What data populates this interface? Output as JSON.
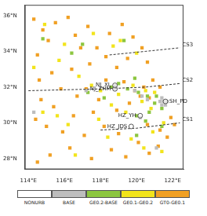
{
  "chart_data": {
    "type": "scatter",
    "xlim": [
      113.8,
      122.6
    ],
    "ylim": [
      27.4,
      36.6
    ],
    "xticks": [
      {
        "value": 114,
        "label": "114°E"
      },
      {
        "value": 116,
        "label": "116°E"
      },
      {
        "value": 118,
        "label": "118°E"
      },
      {
        "value": 120,
        "label": "120°E"
      },
      {
        "value": 122,
        "label": "122°E"
      }
    ],
    "yticks": [
      {
        "value": 28,
        "label": "28°N"
      },
      {
        "value": 30,
        "label": "30°N"
      },
      {
        "value": 32,
        "label": "32°N"
      },
      {
        "value": 34,
        "label": "34°N"
      },
      {
        "value": 36,
        "label": "36°N"
      }
    ],
    "grid": false,
    "legend": "bottom",
    "series": [
      {
        "name": "NONURB",
        "color": "#ffffff",
        "marker": "square",
        "x": [],
        "y": []
      },
      {
        "name": "BASE",
        "color": "#bdbdbd",
        "marker": "square",
        "x": [
          121.3,
          121.5,
          121.7,
          121.4,
          121.6,
          121.4,
          118.8,
          118.8,
          120.2,
          120.3,
          120.6,
          117.2,
          114.3,
          119.9,
          121.1
        ],
        "y": [
          31.2,
          31.2,
          31.2,
          31.4,
          31.0,
          31.0,
          32.1,
          31.9,
          30.3,
          31.5,
          31.3,
          31.8,
          30.6,
          31.8,
          28.6
        ]
      },
      {
        "name": "GE0.2-BASE",
        "color": "#8cc63f",
        "marker": "square",
        "x": [
          118.6,
          119.0,
          119.5,
          120.1,
          120.6,
          121.1,
          121.0,
          120.7,
          120.0,
          120.5,
          121.4,
          117.3,
          118.2,
          119.3,
          117.0,
          116.4,
          114.8,
          120.0,
          121.4,
          119.9
        ],
        "y": [
          32.0,
          32.2,
          31.9,
          31.7,
          31.5,
          31.5,
          31.1,
          30.6,
          30.4,
          30.1,
          30.8,
          31.7,
          31.4,
          34.6,
          34.4,
          33.9,
          34.7,
          29.3,
          29.8,
          32.5
        ]
      },
      {
        "name": "GE0.1-GE0.2",
        "color": "#f2e41c",
        "marker": "square",
        "x": [
          114.9,
          116.0,
          117.6,
          119.1,
          120.0,
          118.7,
          116.8,
          117.5,
          118.0,
          119.0,
          119.8,
          120.5,
          121.0,
          120.3,
          119.4,
          120.8,
          117.9,
          116.2,
          115.6,
          114.8,
          116.6,
          118.4,
          119.7,
          120.4,
          121.4,
          121.5,
          114.3,
          115.7,
          118.6,
          120.9
        ],
        "y": [
          35.5,
          34.4,
          35.0,
          34.6,
          33.9,
          34.3,
          32.6,
          32.1,
          31.8,
          31.6,
          32.1,
          31.8,
          31.7,
          31.2,
          30.6,
          30.8,
          30.2,
          29.9,
          30.4,
          30.6,
          28.2,
          29.2,
          29.1,
          28.6,
          28.4,
          30.0,
          33.1,
          33.5,
          31.0,
          29.5
        ]
      },
      {
        "name": "GT0-GE0.1",
        "color": "#f0a024",
        "marker": "square",
        "x": [
          114.3,
          114.8,
          115.5,
          116.2,
          115.1,
          114.5,
          116.6,
          117.3,
          117.8,
          118.5,
          119.2,
          119.8,
          120.3,
          119.5,
          120.6,
          118.9,
          117.4,
          116.4,
          115.3,
          114.6,
          115.8,
          116.7,
          117.2,
          117.9,
          118.3,
          119.3,
          119.9,
          120.4,
          120.9,
          121.3,
          120.2,
          120.7,
          119.6,
          118.9,
          117.6,
          116.5,
          115.4,
          114.7,
          114.4,
          115.9,
          117.1,
          118.2,
          119.0,
          120.6,
          121.3,
          121.7,
          121.2,
          120.7,
          120.1,
          119.4,
          118.6,
          117.5,
          116.3,
          115.2,
          114.5,
          121.9,
          122.1,
          115.0,
          116.9,
          118.3
        ],
        "y": [
          35.8,
          35.2,
          35.6,
          35.9,
          34.6,
          33.8,
          34.9,
          35.4,
          34.2,
          35.0,
          35.5,
          34.8,
          34.2,
          33.6,
          33.4,
          33.1,
          33.3,
          33.0,
          32.8,
          32.4,
          31.9,
          31.5,
          31.9,
          31.3,
          32.4,
          32.3,
          31.8,
          32.0,
          32.4,
          32.0,
          31.5,
          31.4,
          31.1,
          30.7,
          30.6,
          30.4,
          30.9,
          31.3,
          30.2,
          29.5,
          29.3,
          29.8,
          29.4,
          29.9,
          29.6,
          29.2,
          28.7,
          28.3,
          28.9,
          28.1,
          28.5,
          28.0,
          28.6,
          28.2,
          27.8,
          30.3,
          29.9,
          29.8,
          34.2,
          33.7
        ]
      }
    ],
    "annotations": {
      "sites": [
        {
          "label": "NJ_XL",
          "x": 118.8,
          "y": 32.1,
          "marker": "circle"
        },
        {
          "label": "NJ_ZHM",
          "x": 118.8,
          "y": 31.9,
          "marker": "circle"
        },
        {
          "label": "SH_PD",
          "x": 121.6,
          "y": 31.2,
          "marker": "circle"
        },
        {
          "label": "HZ_YH",
          "x": 120.2,
          "y": 30.4,
          "marker": "circle"
        },
        {
          "label": "HZ_JDS",
          "x": 119.7,
          "y": 29.8,
          "marker": "circle"
        }
      ],
      "cross_sections": [
        {
          "label": "CS1",
          "line_style": "dashed",
          "x": [
            118.0,
            120.0,
            122.4
          ],
          "y": [
            29.6,
            29.7,
            30.0
          ]
        },
        {
          "label": "CS2",
          "line_style": "dashed",
          "x": [
            114.0,
            118.0,
            120.5,
            122.4
          ],
          "y": [
            31.8,
            31.9,
            32.0,
            32.2
          ]
        },
        {
          "label": "CS3",
          "line_style": "dashed",
          "x": [
            118.5,
            120.5,
            122.4
          ],
          "y": [
            33.8,
            34.0,
            34.2
          ]
        }
      ]
    }
  }
}
